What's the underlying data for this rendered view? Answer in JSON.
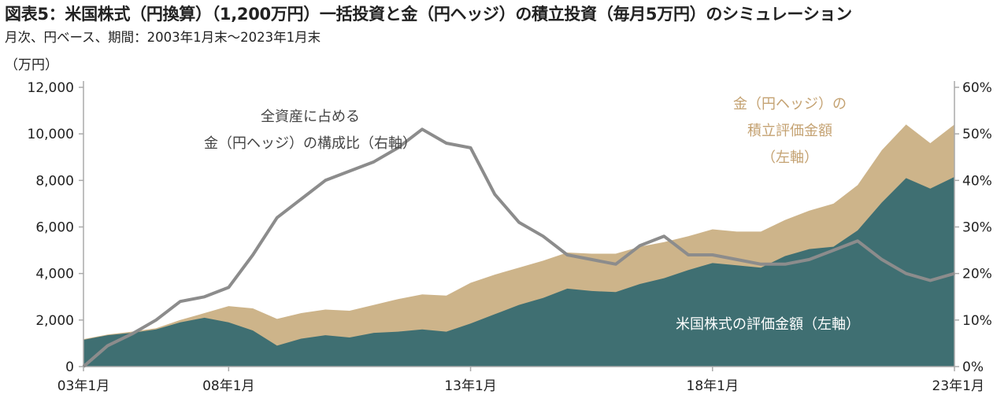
{
  "title": "図表5：米国株式（円換算）（1,200万円）一括投資と金（円ヘッジ）の積立投資（毎月5万円）のシミュレーション",
  "subtitle": "月次、円ベース、期間：2003年1月末～2023年1月末",
  "colors": {
    "stock_fill": "#3f6f72",
    "gold_fill": "#cdb48a",
    "ratio_line": "#8c8c8c",
    "gold_label": "#c4a272",
    "axis": "#aaaaaa"
  },
  "chart_data": {
    "type": "area",
    "unit_label_left": "（万円）",
    "x": [
      "03年1月",
      "04年1月",
      "05年1月",
      "06年1月",
      "07年1月",
      "07年7月",
      "08年1月",
      "08年7月",
      "09年1月",
      "09年7月",
      "10年1月",
      "10年7月",
      "11年1月",
      "11年7月",
      "12年1月",
      "12年7月",
      "13年1月",
      "13年7月",
      "14年1月",
      "14年7月",
      "15年1月",
      "15年7月",
      "16年1月",
      "16年7月",
      "17年1月",
      "17年7月",
      "18年1月",
      "18年7月",
      "19年1月",
      "19年7月",
      "20年1月",
      "20年7月",
      "21年1月",
      "21年7月",
      "22年1月",
      "22年7月",
      "23年1月"
    ],
    "x_tick_labels": [
      "03年1月",
      "08年1月",
      "13年1月",
      "18年1月",
      "23年1月"
    ],
    "x_tick_positions": [
      "03年1月",
      "08年1月",
      "13年1月",
      "18年1月",
      "23年1月"
    ],
    "yleft_ticks": [
      "0",
      "2,000",
      "4,000",
      "6,000",
      "8,000",
      "10,000",
      "12,000"
    ],
    "yleft_lim": [
      0,
      12000
    ],
    "yright_ticks": [
      "0%",
      "10%",
      "20%",
      "30%",
      "40%",
      "50%",
      "60%"
    ],
    "yright_lim": [
      0,
      60
    ],
    "series": [
      {
        "name": "米国株式の評価金額",
        "axis": "left",
        "kind": "area",
        "values": [
          1150,
          1350,
          1450,
          1600,
          1900,
          2100,
          1900,
          1550,
          900,
          1200,
          1350,
          1250,
          1450,
          1500,
          1600,
          1500,
          1850,
          2250,
          2650,
          2950,
          3350,
          3250,
          3200,
          3550,
          3800,
          4150,
          4450,
          4350,
          4250,
          4750,
          5050,
          5150,
          5850,
          7050,
          8100,
          7650,
          8150
        ]
      },
      {
        "name": "金（円ヘッジ）の積立評価金額",
        "axis": "left",
        "kind": "area",
        "values": [
          1180,
          1380,
          1500,
          1650,
          2000,
          2300,
          2600,
          2500,
          2050,
          2300,
          2450,
          2400,
          2650,
          2900,
          3100,
          3050,
          3600,
          3950,
          4250,
          4550,
          4900,
          4850,
          4850,
          5150,
          5350,
          5600,
          5900,
          5800,
          5800,
          6300,
          6700,
          7000,
          7800,
          9300,
          10400,
          9600,
          10400
        ]
      },
      {
        "name": "全資産に占める金（円ヘッジ）の構成比",
        "axis": "right",
        "kind": "line",
        "values": [
          0,
          4.5,
          7,
          10,
          14,
          15,
          17,
          24,
          32,
          36,
          40,
          42,
          44,
          47,
          51,
          48,
          47,
          37,
          31,
          28,
          24,
          23,
          22,
          26,
          28,
          24,
          24,
          23,
          22,
          22,
          23,
          25,
          27,
          23,
          20,
          18.5,
          20
        ]
      }
    ],
    "annotations": [
      {
        "text": "全資産に占める",
        "series": "ratio"
      },
      {
        "text": "金（円ヘッジ）の構成比（右軸）",
        "series": "ratio"
      },
      {
        "text": "金（円ヘッジ）の",
        "series": "gold"
      },
      {
        "text": "積立評価金額",
        "series": "gold"
      },
      {
        "text": "（左軸）",
        "series": "gold"
      },
      {
        "text": "米国株式の評価金額（左軸）",
        "series": "stock"
      }
    ],
    "grid": false
  }
}
